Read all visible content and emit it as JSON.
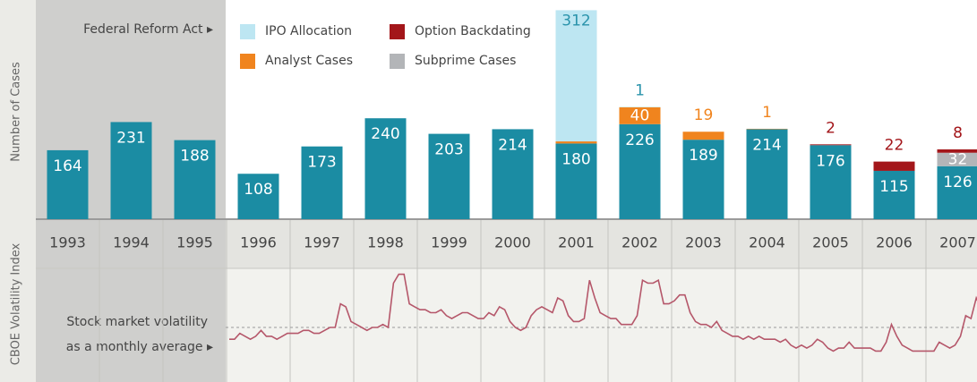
{
  "chart_data": [
    {
      "type": "bar",
      "y_label": "Number of Cases",
      "annotation": "Federal Reform Act ▸",
      "categories": [
        "1993",
        "1994",
        "1995",
        "1996",
        "1997",
        "1998",
        "1999",
        "2000",
        "2001",
        "2002",
        "2003",
        "2004",
        "2005",
        "2006",
        "2007"
      ],
      "ylim": [
        0,
        500
      ],
      "series": [
        {
          "color": "#1b8ca3",
          "values": [
            164,
            231,
            188,
            108,
            173,
            240,
            203,
            214,
            180,
            226,
            189,
            214,
            176,
            115,
            126
          ]
        },
        {
          "name": "Analyst Cases",
          "color": "#f0841e",
          "values": [
            null,
            null,
            null,
            null,
            null,
            null,
            null,
            null,
            5,
            40,
            19,
            1,
            null,
            null,
            null
          ]
        },
        {
          "name": "Subprime Cases",
          "color": "#b3b5b8",
          "values": [
            null,
            null,
            null,
            null,
            null,
            null,
            null,
            null,
            null,
            null,
            null,
            null,
            null,
            null,
            32
          ]
        },
        {
          "name": "Option Backdating",
          "color": "#a3161a",
          "values": [
            null,
            null,
            null,
            null,
            null,
            null,
            null,
            null,
            null,
            null,
            null,
            null,
            2,
            22,
            8
          ]
        },
        {
          "name": "IPO Allocation",
          "color": "#bde6f2",
          "values": [
            null,
            null,
            null,
            null,
            null,
            null,
            null,
            null,
            312,
            1,
            null,
            null,
            null,
            null,
            null
          ]
        }
      ]
    },
    {
      "type": "line",
      "y_label": "CBOE Volatility Index",
      "annotation": [
        "Stock market volatility",
        "as a monthly average ▸"
      ],
      "color": "#b5576a",
      "ylim": [
        1.5,
        40.6
      ],
      "reference_line": 20,
      "values": [
        16,
        16,
        18,
        17,
        16,
        17,
        19,
        17,
        17,
        16,
        17,
        18,
        18,
        18,
        19,
        19,
        18,
        18,
        19,
        20,
        20,
        28,
        27,
        22,
        21,
        20,
        19,
        20,
        20,
        21,
        20,
        35,
        38,
        38,
        28,
        27,
        26,
        26,
        25,
        25,
        26,
        24,
        23,
        24,
        25,
        25,
        24,
        23,
        23,
        25,
        24,
        27,
        26,
        22,
        20,
        19,
        20,
        24,
        26,
        27,
        26,
        25,
        30,
        29,
        24,
        22,
        22,
        23,
        36,
        30,
        25,
        24,
        23,
        23,
        21,
        21,
        21,
        24,
        36,
        35,
        35,
        36,
        28,
        28,
        29,
        31,
        31,
        25,
        22,
        21,
        21,
        20,
        22,
        19,
        18,
        17,
        17,
        16,
        17,
        16,
        17,
        16,
        16,
        16,
        15,
        16,
        14,
        13,
        14,
        13,
        14,
        16,
        15,
        13,
        12,
        13,
        13,
        15,
        13,
        13,
        13,
        13,
        12,
        12,
        15,
        21,
        17,
        14,
        13,
        12,
        12,
        12,
        12,
        12,
        15,
        14,
        13,
        14,
        17,
        24,
        23,
        30,
        26,
        24
      ]
    }
  ]
}
